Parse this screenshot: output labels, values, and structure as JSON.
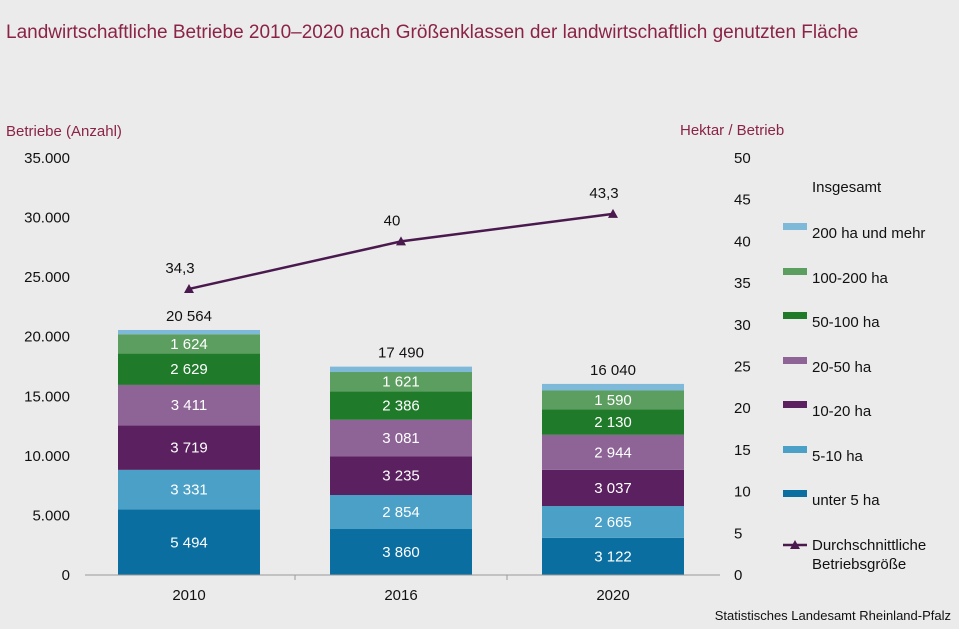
{
  "title": "Landwirtschaftliche Betriebe 2010–2020 nach Größenklassen der landwirtschaftlich genutzten Fläche",
  "source": "Statistisches Landesamt Rheinland-Pfalz",
  "chart_data": {
    "type": "bar",
    "stacked": true,
    "categories": [
      "2010",
      "2016",
      "2020"
    ],
    "left_axis": {
      "title": "Betriebe (Anzahl)",
      "range": [
        0,
        35000
      ],
      "ticks": [
        0,
        5000,
        10000,
        15000,
        20000,
        25000,
        30000,
        35000
      ],
      "tick_labels": [
        "0",
        "5.000",
        "10.000",
        "15.000",
        "20.000",
        "25.000",
        "30.000",
        "35.000"
      ]
    },
    "right_axis": {
      "title": "Hektar  / Betrieb",
      "range": [
        0,
        50
      ],
      "ticks": [
        0,
        5,
        10,
        15,
        20,
        25,
        30,
        35,
        40,
        45,
        50
      ],
      "tick_labels": [
        "0",
        "5",
        "10",
        "15",
        "20",
        "25",
        "30",
        "35",
        "40",
        "45",
        "50"
      ]
    },
    "series": [
      {
        "name": "unter 5 ha",
        "color": "#0a6fa0",
        "values": [
          5494,
          3860,
          3122
        ],
        "labels": [
          "5 494",
          "3 860",
          "3 122"
        ]
      },
      {
        "name": "5-10 ha",
        "color": "#4aa0c6",
        "values": [
          3331,
          2854,
          2665
        ],
        "labels": [
          "3 331",
          "2 854",
          "2 665"
        ]
      },
      {
        "name": "10-20 ha",
        "color": "#5b2060",
        "values": [
          3719,
          3235,
          3037
        ],
        "labels": [
          "3 719",
          "3 235",
          "3 037"
        ]
      },
      {
        "name": "20-50 ha",
        "color": "#8e6497",
        "values": [
          3411,
          3081,
          2944
        ],
        "labels": [
          "3 411",
          "3 081",
          "2 944"
        ]
      },
      {
        "name": "50-100 ha",
        "color": "#1f7a2a",
        "values": [
          2629,
          2386,
          2130
        ],
        "labels": [
          "2 629",
          "2 386",
          "2 130"
        ]
      },
      {
        "name": "100-200 ha",
        "color": "#5c9e60",
        "values": [
          1624,
          1621,
          1590
        ],
        "labels": [
          "1 624",
          "1 621",
          "1 590"
        ]
      },
      {
        "name": "200 ha und mehr",
        "color": "#7fb9d9",
        "values": [
          356,
          453,
          552
        ],
        "labels": [
          "",
          "",
          ""
        ]
      }
    ],
    "totals": [
      20564,
      17490,
      16040
    ],
    "total_labels": [
      "20 564",
      "17 490",
      "16 040"
    ],
    "line": {
      "name": "Durchschnittliche Betriebsgröße",
      "name_lines": [
        "Durchschnittliche",
        "Betriebsgröße"
      ],
      "axis": "right",
      "color": "#4a1a4f",
      "marker": "triangle",
      "values": [
        34.3,
        40,
        43.3
      ],
      "labels": [
        "34,3",
        "40",
        "43,3"
      ]
    },
    "legend": {
      "title": "Insgesamt",
      "placement": "right",
      "order": [
        "200 ha und mehr",
        "100-200 ha",
        "50-100 ha",
        "20-50 ha",
        "10-20 ha",
        "5-10 ha",
        "unter 5 ha"
      ]
    },
    "grid": false
  }
}
